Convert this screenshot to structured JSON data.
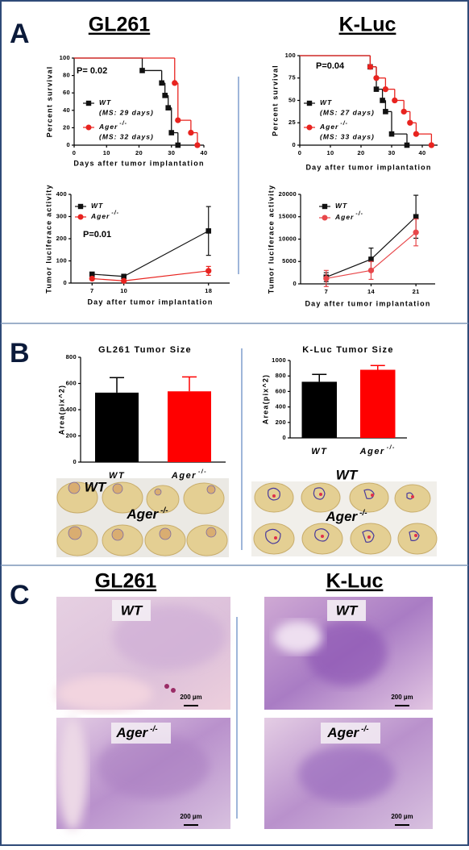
{
  "panels": [
    {
      "letter": "A",
      "titles": [
        "GL261",
        "K-Luc"
      ]
    },
    {
      "letter": "B",
      "photo_labels": [
        "WT",
        "Ager"
      ],
      "photo_superscript": "-/-"
    },
    {
      "letter": "C",
      "titles": [
        "GL261",
        "K-Luc"
      ],
      "photo_labels": [
        "WT",
        "Ager"
      ],
      "photo_superscript": "-/-",
      "scale_bar": "200 µm"
    }
  ],
  "chart_data": [
    {
      "type": "survival",
      "ylabel": "Percent survival",
      "xlabel": "Days after tumor implantation",
      "annotation": "P= 0.02",
      "xlim": [
        0,
        40
      ],
      "xticks": [
        0,
        10,
        20,
        30,
        40
      ],
      "ylim": [
        0,
        100
      ],
      "yticks": [
        0,
        20,
        40,
        60,
        80,
        100
      ],
      "series": [
        {
          "name": "WT",
          "note": "(MS: 29 days)",
          "color": "#111111",
          "marker": "square",
          "x": [
            0,
            21,
            27,
            28,
            29,
            30,
            32
          ],
          "values": [
            100,
            85.7,
            71.4,
            57.1,
            42.9,
            14.3,
            0
          ]
        },
        {
          "name": "Ager",
          "superscript": "-/-",
          "note": "(MS: 32 days)",
          "color": "#e8231f",
          "marker": "circle",
          "x": [
            0,
            31,
            32,
            36,
            38
          ],
          "values": [
            100,
            71.4,
            28.6,
            14.3,
            0
          ]
        }
      ]
    },
    {
      "type": "survival",
      "ylabel": "Percent survival",
      "xlabel": "Day after tumor implantation",
      "annotation": "P=0.04",
      "xlim": [
        0,
        45
      ],
      "xticks": [
        0,
        10,
        20,
        30,
        40
      ],
      "ylim": [
        0,
        100
      ],
      "yticks": [
        0,
        25,
        50,
        75,
        100
      ],
      "series": [
        {
          "name": "WT",
          "note": "(MS: 27 days)",
          "color": "#111111",
          "marker": "square",
          "x": [
            0,
            23,
            25,
            27,
            28,
            30,
            35
          ],
          "values": [
            100,
            87.5,
            62.5,
            50,
            37.5,
            12.5,
            0
          ]
        },
        {
          "name": "Ager",
          "superscript": "-/-",
          "note": "(MS: 33 days)",
          "color": "#e8231f",
          "marker": "circle",
          "x": [
            0,
            23,
            25,
            28,
            31,
            34,
            36,
            38,
            43
          ],
          "values": [
            100,
            87.5,
            75,
            62.5,
            50,
            37.5,
            25,
            12.5,
            0
          ]
        }
      ]
    },
    {
      "type": "line",
      "ylabel": "Tumor luciferace activity",
      "xlabel": "Day after tumor implantation",
      "annotation": "P=0.01",
      "x": [
        7,
        10,
        18
      ],
      "xlim": [
        5,
        20
      ],
      "xticks": [
        7,
        10,
        18
      ],
      "ylim": [
        0,
        400
      ],
      "yticks": [
        0,
        100,
        200,
        300,
        400
      ],
      "series": [
        {
          "name": "WT",
          "color": "#111111",
          "marker": "square",
          "values": [
            40,
            30,
            235
          ],
          "errors": [
            8,
            6,
            110
          ]
        },
        {
          "name": "Ager",
          "superscript": "-/-",
          "color": "#e8231f",
          "marker": "circle",
          "values": [
            20,
            10,
            55
          ],
          "errors": [
            5,
            3,
            20
          ]
        }
      ]
    },
    {
      "type": "line",
      "ylabel": "Tumor luciferace activity",
      "xlabel": "Day after tumor implantation",
      "x": [
        7,
        14,
        21
      ],
      "xlim": [
        3,
        24
      ],
      "xticks": [
        7,
        14,
        21
      ],
      "ylim": [
        0,
        20000
      ],
      "yticks": [
        0,
        5000,
        10000,
        15000,
        20000
      ],
      "series": [
        {
          "name": "WT",
          "color": "#111111",
          "marker": "square",
          "values": [
            1500,
            5500,
            15000
          ],
          "errors": [
            1000,
            2500,
            4800
          ]
        },
        {
          "name": "Ager",
          "superscript": "-/-",
          "color": "#e8474a",
          "marker": "circle",
          "values": [
            1200,
            3000,
            11500
          ],
          "errors": [
            1800,
            2000,
            3000
          ]
        }
      ]
    },
    {
      "type": "bar",
      "title": "GL261 Tumor Size",
      "ylabel": "Area(pix^2)",
      "categories": [
        "WT",
        "Ager"
      ],
      "category_superscripts": [
        null,
        "-/-"
      ],
      "values": [
        530,
        540
      ],
      "errors": [
        115,
        110
      ],
      "colors": [
        "#000000",
        "#ff0000"
      ],
      "ylim": [
        0,
        800
      ],
      "yticks": [
        0,
        200,
        400,
        600,
        800
      ]
    },
    {
      "type": "bar",
      "title": "K-Luc Tumor Size",
      "ylabel": "Area(pix^2)",
      "categories": [
        "WT",
        "Ager"
      ],
      "category_superscripts": [
        null,
        "-/-"
      ],
      "values": [
        725,
        880
      ],
      "errors": [
        95,
        55
      ],
      "colors": [
        "#000000",
        "#ff0000"
      ],
      "ylim": [
        0,
        1000
      ],
      "yticks": [
        0,
        200,
        400,
        600,
        800,
        1000
      ]
    }
  ]
}
